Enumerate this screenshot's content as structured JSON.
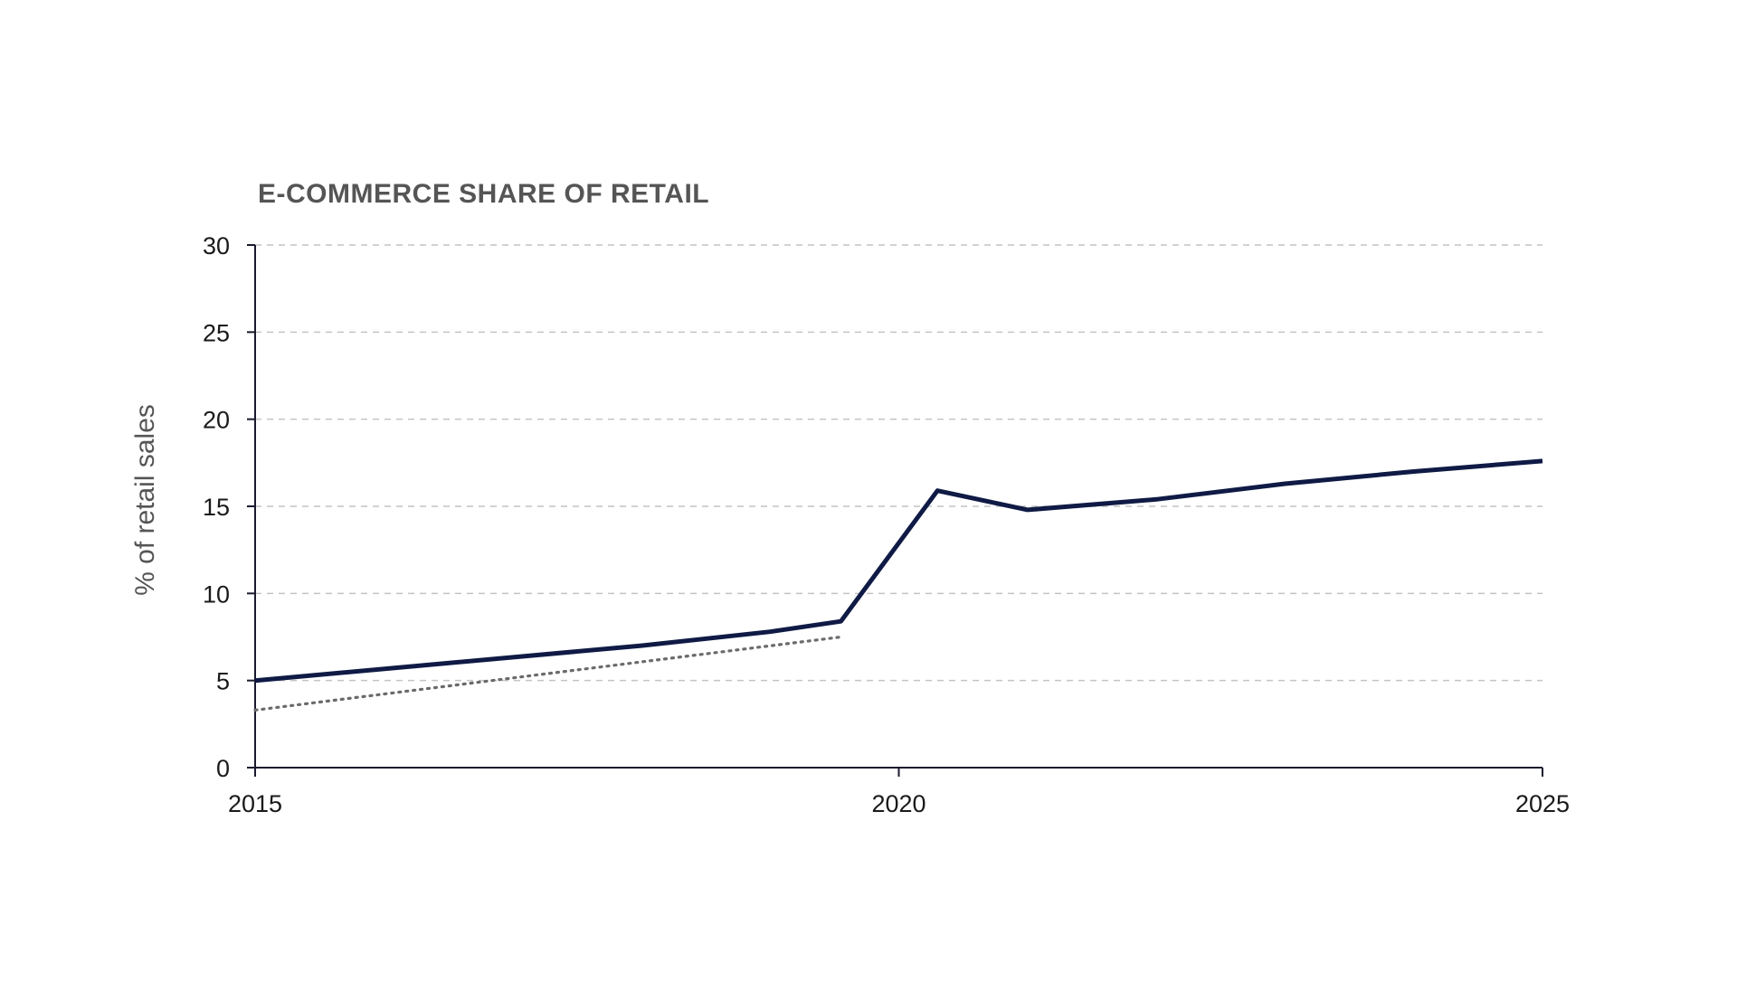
{
  "chart_data": {
    "type": "line",
    "title": "E-COMMERCE SHARE OF RETAIL",
    "xlabel": "",
    "ylabel": "% of retail sales",
    "xlim": [
      2015,
      2025
    ],
    "ylim": [
      0,
      30
    ],
    "x_ticks": [
      2015,
      2020,
      2025
    ],
    "y_ticks": [
      0,
      5,
      10,
      15,
      20,
      25,
      30
    ],
    "grid": "horizontal-dashed",
    "legend": "none",
    "series": [
      {
        "style": "solid",
        "color": "#0f1a45",
        "points": [
          {
            "x": 2015.0,
            "y": 5.0
          },
          {
            "x": 2016.5,
            "y": 6.0
          },
          {
            "x": 2018.0,
            "y": 7.0
          },
          {
            "x": 2019.0,
            "y": 7.8
          },
          {
            "x": 2019.55,
            "y": 8.4
          },
          {
            "x": 2020.3,
            "y": 15.9
          },
          {
            "x": 2021.0,
            "y": 14.8
          },
          {
            "x": 2022.0,
            "y": 15.4
          },
          {
            "x": 2023.0,
            "y": 16.3
          },
          {
            "x": 2024.0,
            "y": 17.0
          },
          {
            "x": 2025.0,
            "y": 17.6
          }
        ]
      },
      {
        "style": "dotted",
        "color": "#6b6b6b",
        "points": [
          {
            "x": 2015.0,
            "y": 3.3
          },
          {
            "x": 2019.55,
            "y": 7.5
          }
        ]
      }
    ]
  }
}
